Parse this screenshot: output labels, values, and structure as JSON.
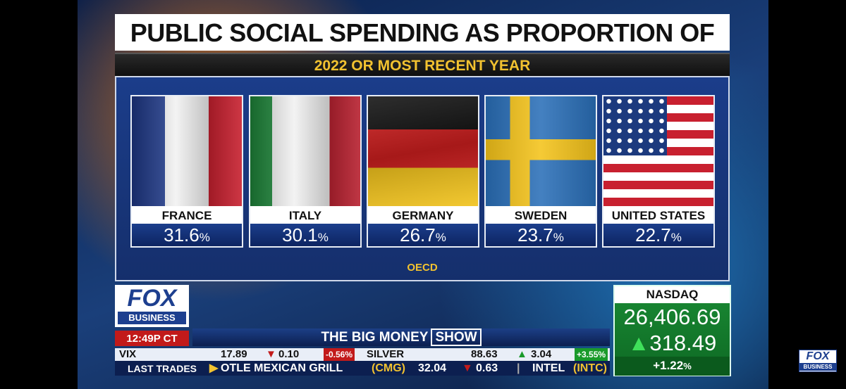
{
  "header": {
    "title": "PUBLIC SOCIAL SPENDING AS PROPORTION OF GDP",
    "subtitle": "2022 OR MOST RECENT YEAR"
  },
  "cards": [
    {
      "country": "FRANCE",
      "value": "31.6",
      "unit": "%"
    },
    {
      "country": "ITALY",
      "value": "30.1",
      "unit": "%"
    },
    {
      "country": "GERMANY",
      "value": "26.7",
      "unit": "%"
    },
    {
      "country": "SWEDEN",
      "value": "23.7",
      "unit": "%"
    },
    {
      "country": "UNITED STATES",
      "value": "22.7",
      "unit": "%"
    }
  ],
  "source": "OECD",
  "network": {
    "logo_top": "FOX",
    "logo_bottom": "BUSINESS",
    "time": "12:49P CT",
    "show_prefix": "THE BIG MONEY",
    "show_highlight": "SHOW"
  },
  "ticker": {
    "row1": {
      "vix": "VIX",
      "vix_value": "17.89",
      "vix_change": "0.10",
      "vix_percent": "-0.56%",
      "silver": "SILVER",
      "silver_value": "88.63",
      "silver_change": "3.04",
      "silver_percent": "+3.55%"
    },
    "row2": {
      "label": "LAST TRADES",
      "name": "OTLE MEXICAN GRILL",
      "symbol": "(CMG)",
      "price": "32.04",
      "change": "0.63",
      "name2": "INTEL",
      "symbol2": "(INTC)"
    }
  },
  "nasdaq": {
    "label": "NASDAQ",
    "value": "26,406.69",
    "change": "318.49",
    "percent": "+1.22",
    "unit": "%"
  },
  "corner_logo": {
    "top": "FOX",
    "bottom": "BUSINESS"
  }
}
